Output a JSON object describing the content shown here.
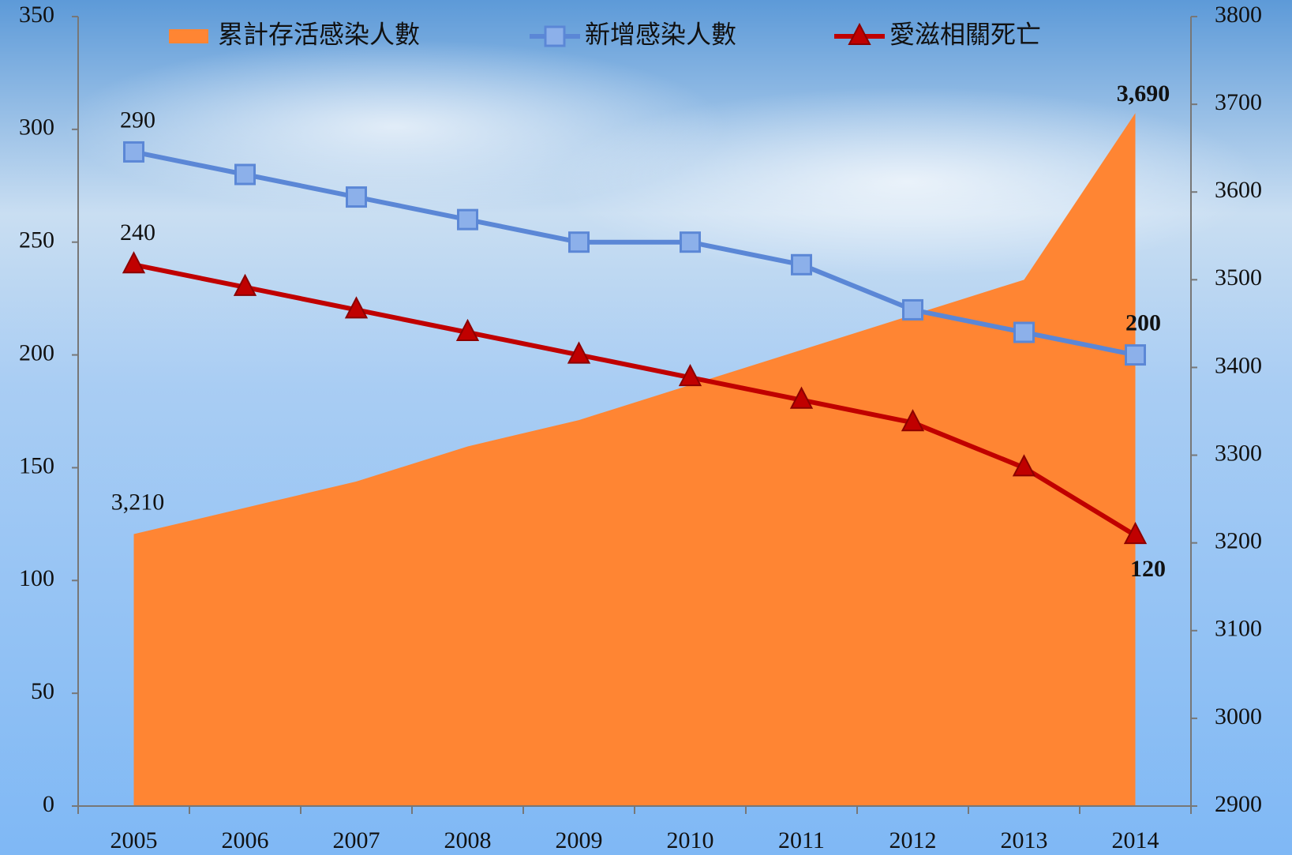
{
  "chart_data": {
    "type": "combo",
    "categories": [
      "2005",
      "2006",
      "2007",
      "2008",
      "2009",
      "2010",
      "2011",
      "2012",
      "2013",
      "2014"
    ],
    "series": [
      {
        "name": "累計存活感染人數",
        "type": "area",
        "axis": "y2",
        "color": "#ff8533",
        "values": [
          3210,
          3240,
          3270,
          3310,
          3340,
          3380,
          3420,
          3460,
          3500,
          3690
        ],
        "value_labels": [
          "3,210",
          null,
          null,
          null,
          null,
          null,
          null,
          null,
          null,
          "3,690"
        ]
      },
      {
        "name": "新增感染人數",
        "type": "line",
        "marker": "square",
        "color": "#5b87d6",
        "values": [
          290,
          280,
          270,
          260,
          250,
          250,
          240,
          220,
          210,
          200
        ],
        "value_labels": [
          "290",
          null,
          null,
          null,
          null,
          null,
          null,
          null,
          null,
          "200"
        ]
      },
      {
        "name": "愛滋相關死亡",
        "type": "line",
        "marker": "triangle",
        "color": "#c00000",
        "values": [
          240,
          230,
          220,
          210,
          200,
          190,
          180,
          170,
          150,
          120
        ],
        "value_labels": [
          "240",
          null,
          null,
          null,
          null,
          null,
          null,
          null,
          null,
          "120"
        ]
      }
    ],
    "ylim": [
      0,
      350
    ],
    "yticks": [
      0,
      50,
      100,
      150,
      200,
      250,
      300,
      350
    ],
    "y2lim": [
      2900,
      3800
    ],
    "y2ticks": [
      2900,
      3000,
      3100,
      3200,
      3300,
      3400,
      3500,
      3600,
      3700,
      3800
    ],
    "legend": "top"
  }
}
